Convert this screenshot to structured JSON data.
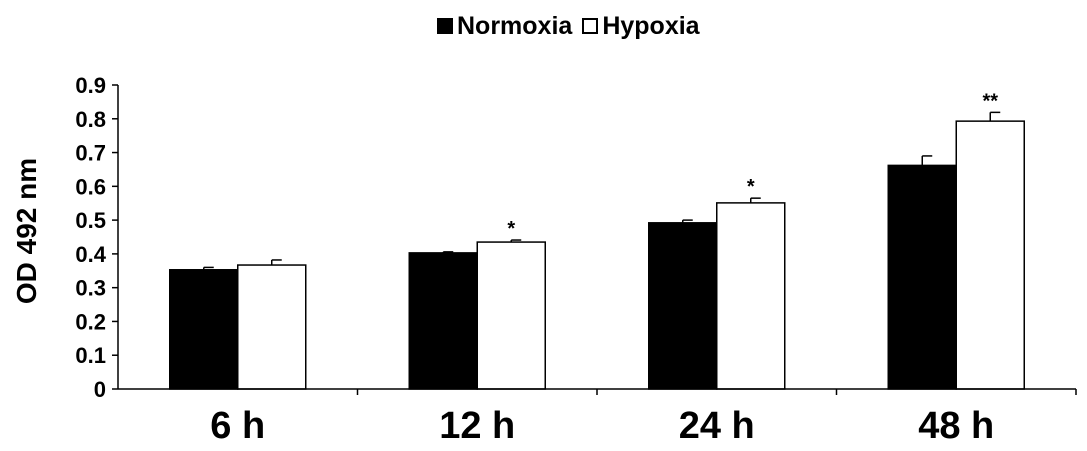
{
  "chart_data": {
    "type": "bar",
    "title": "",
    "xlabel": "",
    "ylabel": "OD 492 nm",
    "ylim": [
      0,
      0.9
    ],
    "yticks": [
      "0",
      "0.1",
      "0.2",
      "0.3",
      "0.4",
      "0.5",
      "0.6",
      "0.7",
      "0.8",
      "0.9"
    ],
    "categories": [
      "6 h",
      "12 h",
      "24 h",
      "48 h"
    ],
    "series": [
      {
        "name": "Normoxia",
        "color": "#000000",
        "values": [
          0.353,
          0.403,
          0.492,
          0.662
        ],
        "errors": [
          0.007,
          0.003,
          0.008,
          0.028
        ]
      },
      {
        "name": "Hypoxia",
        "color": "#ffffff",
        "values": [
          0.367,
          0.435,
          0.551,
          0.793
        ],
        "errors": [
          0.015,
          0.006,
          0.014,
          0.026
        ]
      }
    ],
    "annotations": [
      {
        "category": "12 h",
        "series": "Hypoxia",
        "text": "*"
      },
      {
        "category": "24 h",
        "series": "Hypoxia",
        "text": "*"
      },
      {
        "category": "48 h",
        "series": "Hypoxia",
        "text": "**"
      }
    ],
    "legend_position": "top-center",
    "grid": false
  }
}
